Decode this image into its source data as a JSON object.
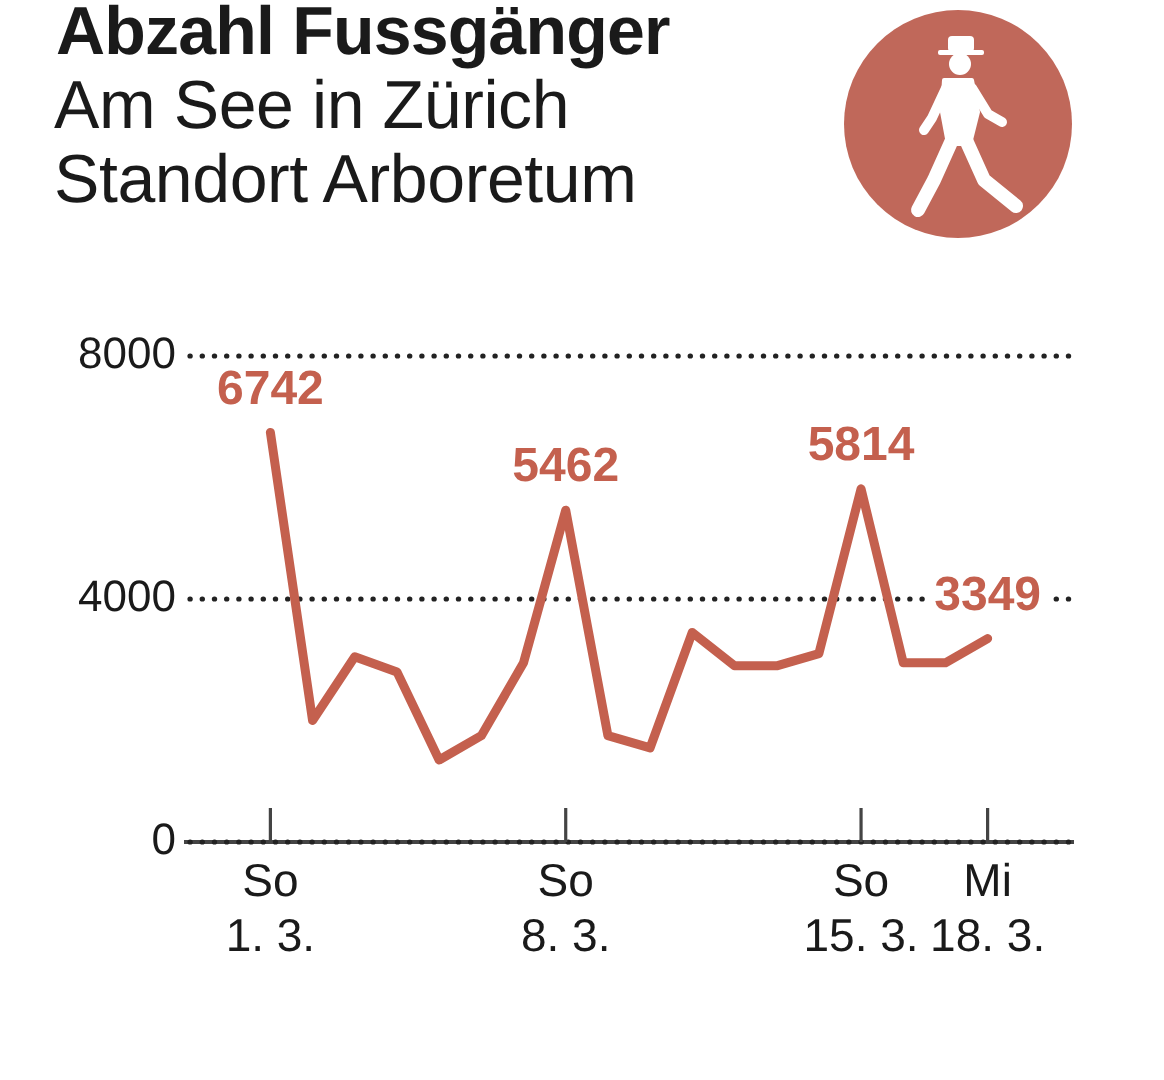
{
  "chart_data": {
    "type": "line",
    "title": "Abzahl Fussgänger",
    "subtitle": "Am See in Zürich\nStandort Arboretum",
    "x": [
      "--03-01",
      "--03-02",
      "--03-03",
      "--03-04",
      "--03-05",
      "--03-06",
      "--03-07",
      "--03-08",
      "--03-09",
      "--03-10",
      "--03-11",
      "--03-12",
      "--03-13",
      "--03-14",
      "--03-15",
      "--03-16",
      "--03-17",
      "--03-18"
    ],
    "xlim": [
      "--02-27",
      "--03-20"
    ],
    "xticks": [
      {
        "value": "--03-01",
        "label": "So 1. 3."
      },
      {
        "value": "--03-08",
        "label": "So 8. 3."
      },
      {
        "value": "--03-15",
        "label": "So 15. 3."
      },
      {
        "value": "--03-18",
        "label": "Mi 18. 3."
      }
    ],
    "ylim": [
      0,
      8000
    ],
    "yticks": [
      0,
      4000,
      8000
    ],
    "grid": "y",
    "series": [
      {
        "color": "#c4604e",
        "values": [
          6742,
          2000,
          3050,
          2800,
          1350,
          1750,
          2950,
          5462,
          1750,
          1550,
          3450,
          2900,
          2900,
          3100,
          5814,
          2950,
          2950,
          3349
        ],
        "value_labels": [
          "6742",
          null,
          null,
          null,
          null,
          null,
          null,
          "5462",
          null,
          null,
          null,
          null,
          null,
          null,
          "5814",
          null,
          null,
          "3349"
        ]
      }
    ]
  }
}
